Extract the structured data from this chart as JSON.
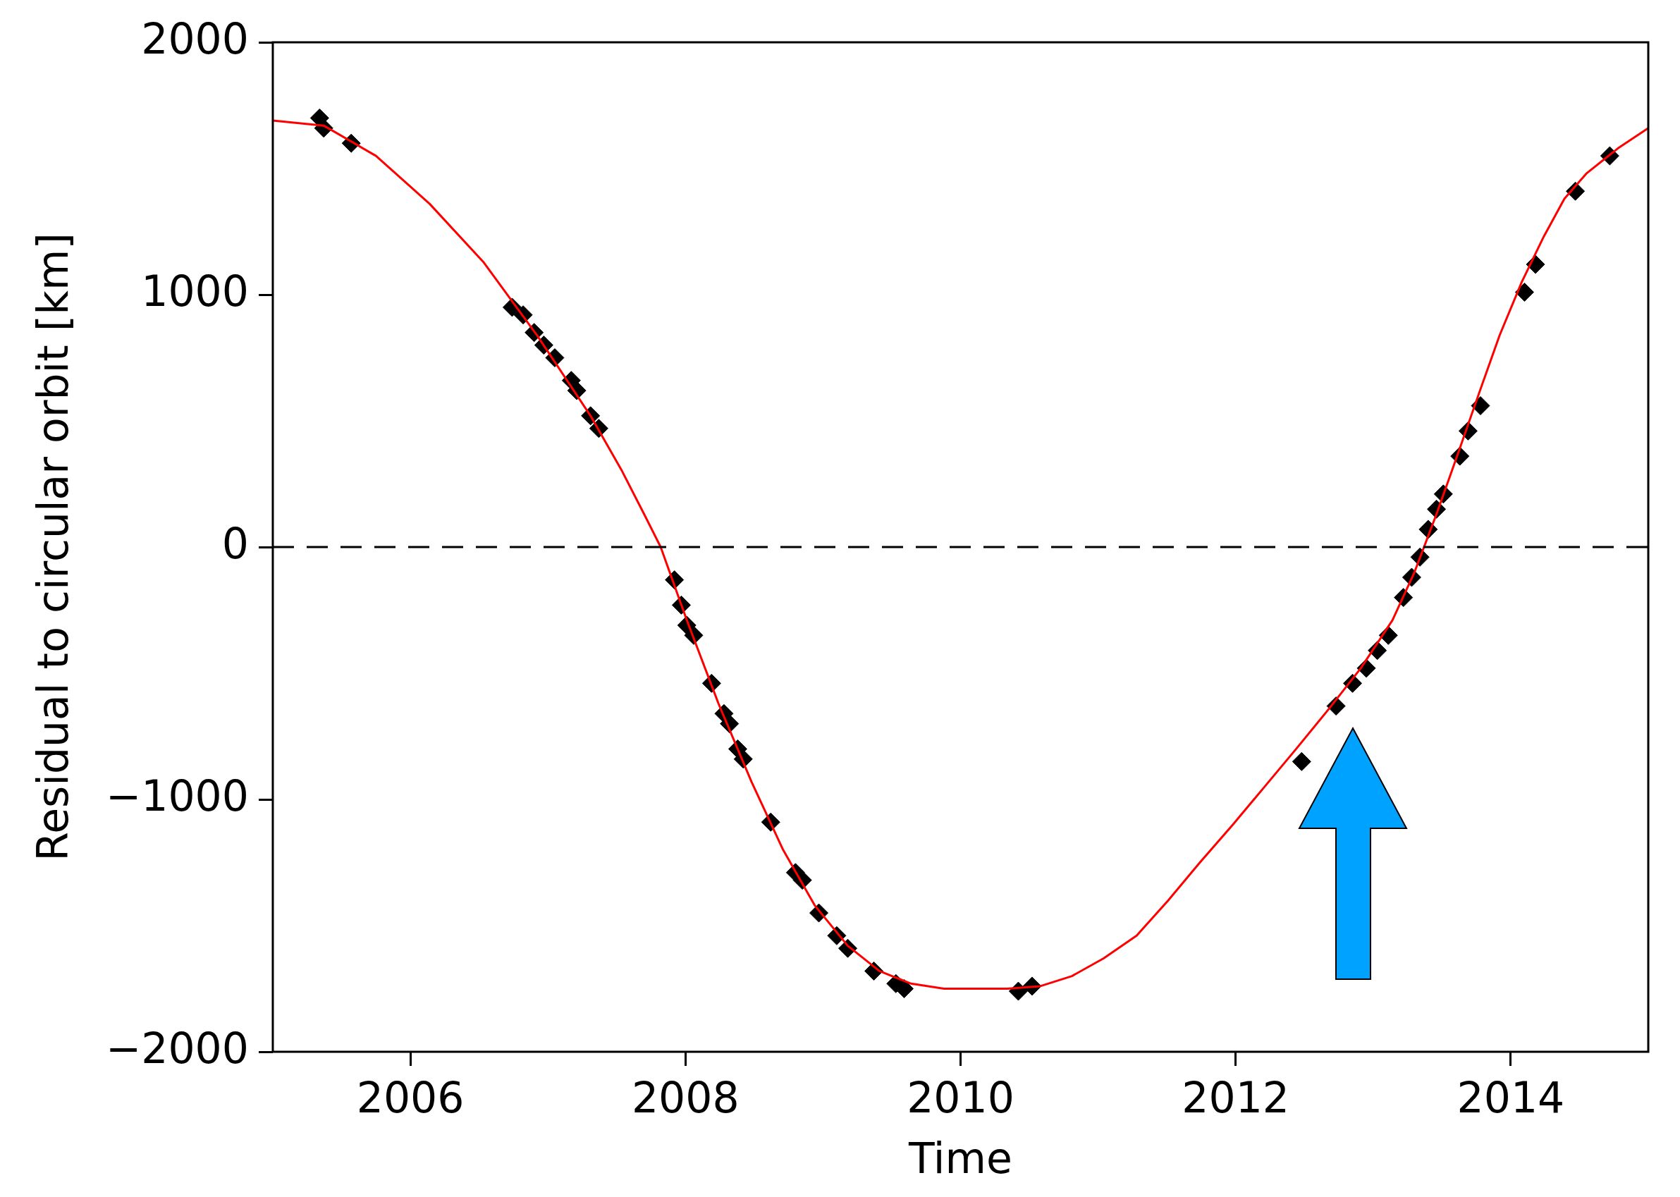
{
  "chart_data": {
    "type": "scatter",
    "xlabel": "Time",
    "ylabel": "Residual to circular orbit [km]",
    "xlim": [
      2005,
      2015
    ],
    "xticks": [
      2006,
      2008,
      2010,
      2012,
      2014
    ],
    "ylim": [
      -2000,
      2000
    ],
    "yticks": [
      {
        "value": -2000,
        "label": "−2000"
      },
      {
        "value": -1000,
        "label": "−1000"
      },
      0,
      1000,
      2000
    ],
    "grid": false,
    "legend": false,
    "marker": "diamond",
    "ref_lines": [
      {
        "axis": "y",
        "value": 0,
        "color": "#000000",
        "line_style": "dashed"
      }
    ],
    "series": [
      {
        "color": "#000000",
        "x": [
          2005.34,
          2005.37,
          2005.57,
          2006.74,
          2006.82,
          2006.9,
          2006.97,
          2007.05,
          2007.17,
          2007.21,
          2007.31,
          2007.37,
          2007.92,
          2007.97,
          2008.01,
          2008.06,
          2008.19,
          2008.28,
          2008.32,
          2008.38,
          2008.42,
          2008.62,
          2008.8,
          2008.85,
          2008.97,
          2009.1,
          2009.18,
          2009.37,
          2009.53,
          2009.59,
          2010.42,
          2010.52,
          2012.48,
          2012.73,
          2012.85,
          2012.95,
          2013.03,
          2013.11,
          2013.22,
          2013.28,
          2013.34,
          2013.4,
          2013.46,
          2013.51,
          2013.63,
          2013.69,
          2013.78,
          2014.1,
          2014.18,
          2014.47,
          2014.72
        ],
        "values": [
          1700,
          1660,
          1600,
          950,
          920,
          850,
          800,
          750,
          660,
          620,
          520,
          470,
          -130,
          -230,
          -310,
          -350,
          -540,
          -660,
          -700,
          -800,
          -840,
          -1090,
          -1290,
          -1320,
          -1450,
          -1540,
          -1590,
          -1680,
          -1730,
          -1750,
          -1760,
          -1740,
          -850,
          -630,
          -540,
          -480,
          -410,
          -350,
          -200,
          -120,
          -40,
          70,
          150,
          210,
          360,
          460,
          560,
          1010,
          1120,
          1410,
          1550
        ]
      },
      {
        "type": "line",
        "color": "#ff0000",
        "marker": "none",
        "line_style": "solid",
        "x": [
          2005.0,
          2005.37,
          2005.75,
          2006.14,
          2006.53,
          2006.92,
          2007.31,
          2007.54,
          2007.7,
          2007.82,
          2008.01,
          2008.24,
          2008.48,
          2008.71,
          2008.94,
          2009.18,
          2009.41,
          2009.64,
          2009.88,
          2010.11,
          2010.34,
          2010.58,
          2010.81,
          2011.04,
          2011.28,
          2011.51,
          2011.74,
          2011.98,
          2012.21,
          2012.44,
          2012.68,
          2012.91,
          2013.14,
          2013.3,
          2013.46,
          2013.61,
          2013.77,
          2013.92,
          2014.08,
          2014.24,
          2014.39,
          2014.55,
          2014.78,
          2015.0
        ],
        "values": [
          1690,
          1670,
          1550,
          1360,
          1130,
          840,
          520,
          300,
          130,
          0,
          -290,
          -620,
          -930,
          -1200,
          -1420,
          -1580,
          -1680,
          -1730,
          -1750,
          -1750,
          -1750,
          -1740,
          -1700,
          -1630,
          -1540,
          -1400,
          -1250,
          -1100,
          -950,
          -800,
          -640,
          -480,
          -290,
          -100,
          130,
          360,
          610,
          840,
          1050,
          1230,
          1380,
          1480,
          1580,
          1660
        ]
      }
    ]
  }
}
